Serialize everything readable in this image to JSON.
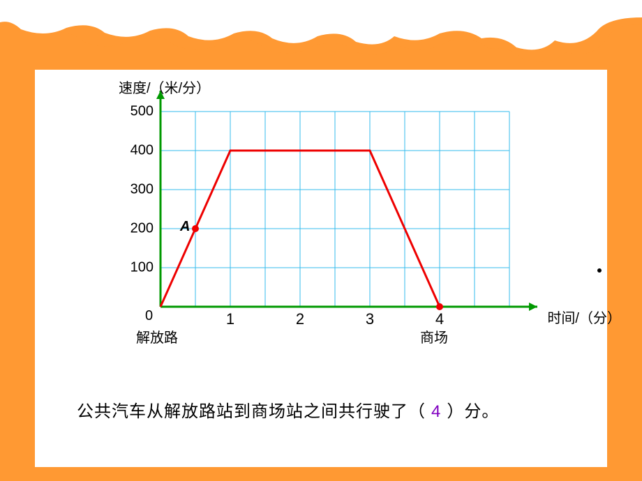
{
  "colors": {
    "page_bg": "#ff9933",
    "card_bg": "#ffffff",
    "axis_color": "#009900",
    "grid_color": "#33bbee",
    "line_color": "#ee0000",
    "answer_color": "#8000c0",
    "text_color": "#000000"
  },
  "chart": {
    "type": "line",
    "y_title": "速度/（米/分）",
    "x_title": "时间/（分）",
    "origin_label": "0",
    "station_start": "解放路",
    "station_end": "商场",
    "xlim": [
      0,
      5
    ],
    "ylim": [
      0,
      500
    ],
    "y_ticks": [
      0,
      100,
      200,
      300,
      400,
      500
    ],
    "y_tick_labels": [
      "0",
      "100",
      "200",
      "300",
      "400",
      "500"
    ],
    "x_ticks": [
      1,
      2,
      3,
      4
    ],
    "x_tick_labels": [
      "1",
      "2",
      "3",
      "4"
    ],
    "grid_x_count": 10,
    "grid_y_count": 5,
    "line_points": [
      [
        0,
        0
      ],
      [
        1,
        400
      ],
      [
        3,
        400
      ],
      [
        4,
        0
      ]
    ],
    "line_width": 3,
    "axis_width": 3,
    "grid_width": 1,
    "marked_points": [
      {
        "x": 0.5,
        "y": 200,
        "label": "A"
      },
      {
        "x": 4,
        "y": 0,
        "label": ""
      }
    ],
    "marker_radius": 5
  },
  "question": {
    "prefix": "公共汽车从解放路站到商场站之间共行驶了（",
    "answer": "4",
    "suffix": "）分。"
  }
}
